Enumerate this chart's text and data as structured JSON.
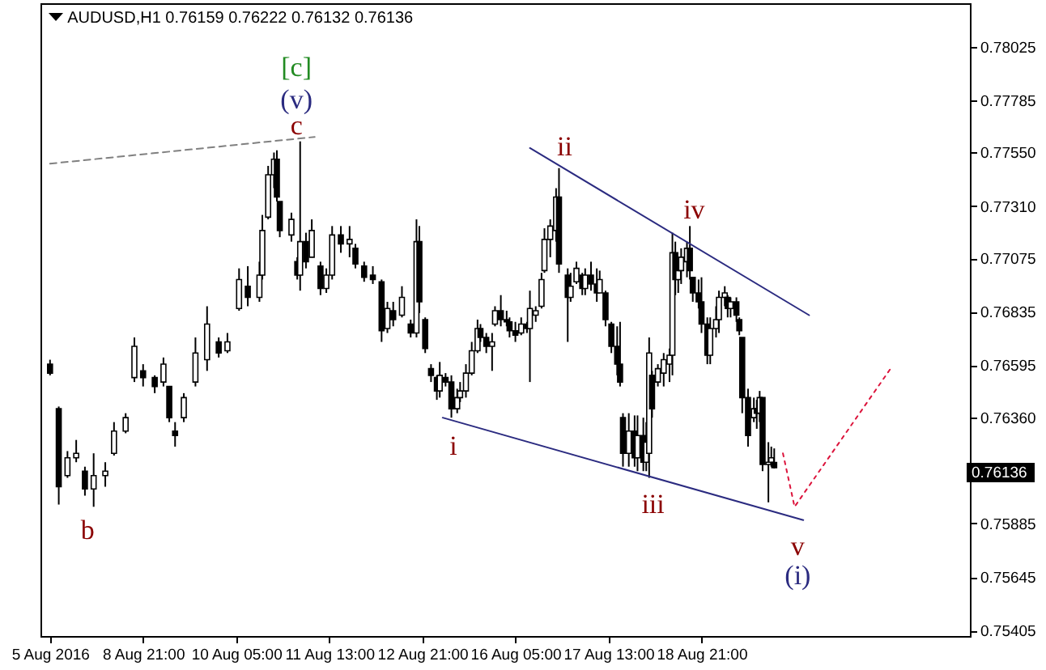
{
  "chart_data": {
    "type": "candlestick",
    "title": "AUDUSD,H1 0.76159 0.76222 0.76132 0.76136",
    "categories": [
      "5 Aug 2016",
      null,
      null,
      null,
      null,
      null,
      null,
      null,
      null,
      null,
      null,
      null,
      null,
      null,
      null,
      null,
      null,
      null,
      null,
      null,
      null,
      null,
      null,
      null,
      null,
      null,
      null,
      null,
      null,
      null,
      null,
      null,
      "8 Aug 21:00",
      null,
      null,
      null,
      null,
      null,
      null,
      null,
      null,
      null,
      null,
      null,
      null,
      null,
      null,
      null,
      null,
      null,
      null,
      null,
      null,
      null,
      null,
      null,
      null,
      null,
      null,
      null,
      null,
      null,
      null,
      null,
      "10 Aug 05:00",
      null,
      null,
      null,
      null,
      null,
      null,
      null,
      null,
      null,
      null,
      null,
      null,
      null,
      null,
      null,
      null,
      null,
      null,
      null,
      null,
      null,
      null,
      null,
      null,
      null,
      null,
      null,
      null,
      null,
      null,
      null,
      "11 Aug 13:00",
      null,
      null,
      null,
      null,
      null,
      null,
      null,
      null,
      null,
      null,
      null,
      null,
      null,
      null,
      null,
      null,
      null,
      null,
      null,
      null,
      null,
      null,
      null,
      null,
      null,
      null,
      null,
      null,
      null,
      null,
      null,
      "12 Aug 21:00",
      null,
      null,
      null,
      null,
      null,
      null,
      null,
      null,
      null,
      null,
      null,
      null,
      null,
      null,
      null,
      null,
      null,
      null,
      null,
      null,
      null,
      null,
      null,
      null,
      null,
      null,
      null,
      null,
      null,
      null,
      null,
      "16 Aug 05:00",
      null,
      null,
      null,
      null,
      null,
      null,
      null,
      null,
      null,
      null,
      null,
      null,
      null,
      null,
      null,
      null,
      null,
      null,
      null,
      null,
      null,
      null,
      null,
      null,
      null,
      null,
      null,
      null,
      null,
      null,
      null,
      "17 Aug 13:00",
      null,
      null,
      null,
      null,
      null,
      null,
      null,
      null,
      null,
      null,
      null,
      null,
      null,
      null,
      null,
      null,
      null,
      null,
      null,
      null,
      null,
      null,
      null,
      null,
      null,
      null,
      null,
      null,
      null,
      null,
      null,
      "18 Aug 21:00",
      null,
      null,
      null,
      null,
      null,
      null,
      null,
      null,
      null,
      null,
      null,
      null,
      null,
      null,
      null,
      null,
      null,
      null,
      null,
      null,
      null,
      null,
      null,
      null,
      null,
      null,
      null,
      null,
      null,
      null,
      null,
      null,
      null,
      null,
      null,
      null,
      null,
      null,
      null,
      null,
      null,
      null,
      null,
      null,
      null,
      null,
      null,
      null,
      null,
      null,
      null,
      null,
      null,
      null,
      null,
      null,
      null,
      null,
      null,
      null,
      null,
      null,
      null,
      null,
      null,
      null,
      null,
      null,
      null,
      null,
      null,
      null,
      null,
      null,
      null,
      null,
      null,
      null,
      null,
      null,
      null,
      null,
      null,
      null,
      null,
      null,
      null,
      null,
      null
    ],
    "ohlc": [
      [
        0.766,
        0.7662,
        0.7655,
        0.7656
      ],
      null,
      null,
      [
        0.764,
        0.7641,
        0.7597,
        0.7605
      ],
      null,
      null,
      [
        0.761,
        0.7621,
        0.7609,
        0.7618
      ],
      null,
      null,
      [
        0.7618,
        0.7626,
        0.7616,
        0.762
      ],
      null,
      null,
      [
        0.7612,
        0.7614,
        0.7601,
        0.7604
      ],
      null,
      null,
      [
        0.7604,
        0.762,
        0.7596,
        0.761
      ],
      null,
      null,
      null,
      [
        0.761,
        0.7616,
        0.7605,
        0.7612
      ],
      null,
      null,
      [
        0.762,
        0.7634,
        0.7619,
        0.763
      ],
      null,
      null,
      null,
      [
        0.763,
        0.7638,
        0.7629,
        0.7636
      ],
      null,
      null,
      [
        0.7654,
        0.7672,
        0.7652,
        0.7668
      ],
      null,
      null,
      [
        0.7657,
        0.766,
        0.765,
        0.7654
      ],
      null,
      null,
      null,
      [
        0.7654,
        0.7655,
        0.7647,
        0.765
      ],
      null,
      null,
      [
        0.7652,
        0.7663,
        0.765,
        0.766
      ],
      null,
      [
        0.765,
        0.765,
        0.7634,
        0.7636
      ],
      null,
      [
        0.763,
        0.7634,
        0.7623,
        0.7628
      ],
      null,
      null,
      [
        0.7636,
        0.7647,
        0.7634,
        0.7645
      ],
      null,
      null,
      null,
      [
        0.7652,
        0.7672,
        0.765,
        0.7665
      ],
      null,
      null,
      null,
      [
        0.7662,
        0.7686,
        0.7657,
        0.7678
      ],
      null,
      null,
      null,
      [
        0.767,
        0.7672,
        0.7663,
        0.7665
      ],
      null,
      null,
      [
        0.7666,
        0.7674,
        0.7665,
        0.767
      ],
      null,
      null,
      null,
      [
        0.7685,
        0.7703,
        0.7684,
        0.7698
      ],
      null,
      null,
      [
        0.7695,
        0.7704,
        0.7686,
        0.769
      ],
      null,
      null,
      null,
      [
        0.769,
        0.7706,
        0.7688,
        0.77
      ],
      [
        0.77,
        0.7727,
        0.7698,
        0.772
      ],
      null,
      [
        0.7726,
        0.7749,
        0.7725,
        0.7745
      ],
      null,
      [
        0.7745,
        0.7755,
        0.7739,
        0.7752
      ],
      [
        0.7752,
        0.7756,
        0.7733,
        0.7735
      ],
      [
        0.7733,
        0.7733,
        0.7717,
        0.772
      ],
      null,
      null,
      null,
      [
        0.7718,
        0.7728,
        0.7715,
        0.7725
      ],
      null,
      [
        0.7706,
        0.7708,
        0.7698,
        0.77
      ],
      [
        0.77,
        0.776,
        0.7693,
        0.7715
      ],
      null,
      [
        0.7715,
        0.7719,
        0.7703,
        0.7706
      ],
      null,
      [
        0.7708,
        0.7725,
        0.7708,
        0.772
      ],
      null,
      null,
      [
        0.7704,
        0.7706,
        0.7691,
        0.7694
      ],
      null,
      [
        0.7694,
        0.7703,
        0.7692,
        0.77
      ],
      null,
      [
        0.77,
        0.7722,
        0.7698,
        0.7718
      ],
      null,
      null,
      [
        0.7718,
        0.7722,
        0.771,
        0.7714
      ],
      null,
      null,
      [
        0.7714,
        0.7722,
        0.7708,
        0.7716
      ],
      null,
      [
        0.7712,
        0.7714,
        0.7703,
        0.7705
      ],
      null,
      null,
      [
        0.7704,
        0.7706,
        0.7697,
        0.7699
      ],
      null,
      null,
      [
        0.77,
        0.7704,
        0.7696,
        0.7698
      ],
      null,
      null,
      [
        0.7697,
        0.7698,
        0.767,
        0.7675
      ],
      null,
      [
        0.7676,
        0.7688,
        0.7674,
        0.7685
      ],
      null,
      [
        0.7684,
        0.7688,
        0.7677,
        0.768
      ],
      null,
      null,
      [
        0.7682,
        0.7695,
        0.7681,
        0.769
      ],
      null,
      null,
      [
        0.7678,
        0.768,
        0.7672,
        0.7674
      ],
      null,
      [
        0.7674,
        0.7725,
        0.7672,
        0.7715
      ],
      [
        0.7715,
        0.7722,
        0.7683,
        0.7688
      ],
      null,
      [
        0.768,
        0.7681,
        0.7665,
        0.7667
      ],
      null,
      [
        0.7658,
        0.766,
        0.7652,
        0.7655
      ],
      null,
      [
        0.7654,
        0.7655,
        0.7644,
        0.7648
      ],
      [
        0.7648,
        0.7661,
        0.7645,
        0.7655
      ],
      null,
      [
        0.7654,
        0.7656,
        0.765,
        0.7652
      ],
      null,
      [
        0.7652,
        0.7655,
        0.7636,
        0.764
      ],
      null,
      [
        0.764,
        0.7649,
        0.7638,
        0.7645
      ],
      [
        0.7645,
        0.7652,
        0.7643,
        0.7648
      ],
      null,
      [
        0.7648,
        0.766,
        0.7645,
        0.7656
      ],
      null,
      [
        0.7656,
        0.767,
        0.7655,
        0.7666
      ],
      null,
      [
        0.7666,
        0.768,
        0.7665,
        0.7676
      ],
      [
        0.7676,
        0.7678,
        0.767,
        0.7672
      ],
      null,
      [
        0.7672,
        0.7674,
        0.7665,
        0.7668
      ],
      null,
      [
        0.7668,
        0.7674,
        0.7657,
        0.767
      ],
      [
        0.7678,
        0.7686,
        0.7677,
        0.7684
      ],
      null,
      [
        0.7684,
        0.7691,
        0.7677,
        0.768
      ],
      null,
      [
        0.768,
        0.7684,
        0.7677,
        0.7679
      ],
      [
        0.7679,
        0.7681,
        0.7672,
        0.7675
      ],
      null,
      [
        0.7675,
        0.7679,
        0.767,
        0.7673
      ],
      null,
      [
        0.7674,
        0.7681,
        0.7673,
        0.7678
      ],
      null,
      [
        0.7678,
        0.7679,
        0.7674,
        0.7676
      ],
      [
        0.7676,
        0.7693,
        0.7652,
        0.7685
      ],
      null,
      [
        0.7682,
        0.7686,
        0.7679,
        0.7684
      ],
      null,
      [
        0.7686,
        0.7701,
        0.7685,
        0.7698
      ],
      [
        0.7702,
        0.7721,
        0.7701,
        0.7716
      ],
      null,
      [
        0.7716,
        0.7725,
        0.7708,
        0.7722
      ],
      null,
      [
        0.772,
        0.7739,
        0.7715,
        0.7735
      ],
      [
        0.7735,
        0.7748,
        0.7701,
        0.7705
      ],
      null,
      null,
      [
        0.77,
        0.7703,
        0.767,
        0.769
      ],
      [
        0.769,
        0.7701,
        0.7688,
        0.7695
      ],
      null,
      [
        0.7697,
        0.7706,
        0.7696,
        0.7703
      ],
      null,
      [
        0.77,
        0.7701,
        0.7691,
        0.7694
      ],
      [
        0.7694,
        0.7703,
        0.7691,
        0.77
      ],
      null,
      [
        0.77,
        0.7706,
        0.7693,
        0.7696
      ],
      null,
      [
        0.7696,
        0.7703,
        0.7688,
        0.7692
      ],
      [
        0.7692,
        0.7702,
        0.7692,
        0.7698
      ],
      null,
      [
        0.7692,
        0.7693,
        0.7677,
        0.768
      ],
      null,
      [
        0.7678,
        0.7679,
        0.7665,
        0.7668
      ],
      null,
      [
        0.7668,
        0.7677,
        0.7655,
        0.766
      ],
      [
        0.766,
        0.7679,
        0.765,
        0.7652
      ],
      [
        0.7636,
        0.7638,
        0.7614,
        0.762
      ],
      null,
      [
        0.762,
        0.7638,
        0.7614,
        0.763
      ],
      null,
      [
        0.763,
        0.7637,
        0.7614,
        0.7618
      ],
      [
        0.7618,
        0.7637,
        0.7612,
        0.7628
      ],
      null,
      [
        0.7628,
        0.7636,
        0.7612,
        0.7616
      ],
      [
        0.7616,
        0.7634,
        0.7612,
        0.7625
      ],
      [
        0.762,
        0.7672,
        0.7609,
        0.7665
      ],
      [
        0.7655,
        0.7657,
        0.7636,
        0.764
      ],
      null,
      [
        0.7652,
        0.766,
        0.765,
        0.7658
      ],
      null,
      [
        0.7656,
        0.7665,
        0.765,
        0.7662
      ],
      null,
      [
        0.766,
        0.7667,
        0.7652,
        0.7664
      ],
      [
        0.7664,
        0.7719,
        0.7655,
        0.771
      ],
      [
        0.771,
        0.7715,
        0.7691,
        0.7698
      ],
      [
        0.7698,
        0.7706,
        0.7692,
        0.7702
      ],
      [
        0.7702,
        0.7712,
        0.7696,
        0.7708
      ],
      null,
      [
        0.7706,
        0.7715,
        0.7699,
        0.7712
      ],
      [
        0.7712,
        0.7722,
        0.7698,
        0.7702
      ],
      [
        0.7699,
        0.7699,
        0.7688,
        0.7692
      ],
      null,
      [
        0.7692,
        0.7698,
        0.7685,
        0.7688
      ],
      [
        0.7688,
        0.7699,
        0.7674,
        0.7678
      ],
      null,
      [
        0.7678,
        0.7681,
        0.766,
        0.7664
      ],
      [
        0.7664,
        0.7681,
        0.766,
        0.7676
      ],
      null,
      [
        0.7676,
        0.7686,
        0.7672,
        0.768
      ],
      [
        0.768,
        0.7693,
        0.7674,
        0.769
      ],
      null,
      [
        0.769,
        0.7695,
        0.7686,
        0.7692
      ],
      [
        0.769,
        0.7691,
        0.7681,
        0.7685
      ],
      [
        0.7685,
        0.769,
        0.7681,
        0.7688
      ],
      null,
      [
        0.7688,
        0.769,
        0.7679,
        0.7682
      ],
      [
        0.768,
        0.7681,
        0.7673,
        0.7675
      ],
      [
        0.7672,
        0.7672,
        0.7638,
        0.7645
      ],
      null,
      [
        0.7645,
        0.7649,
        0.7623,
        0.7628
      ],
      null,
      [
        0.7636,
        0.7645,
        0.7634,
        0.764
      ],
      [
        0.764,
        0.7644,
        0.7631,
        0.7638
      ],
      [
        0.7638,
        0.7648,
        0.7634,
        0.7645
      ],
      [
        0.7645,
        0.7645,
        0.7612,
        0.7615
      ],
      null,
      [
        0.7615,
        0.7625,
        0.7598,
        0.7616
      ],
      [
        0.7616,
        0.7623,
        0.7614,
        0.7618
      ],
      [
        0.76159,
        0.76222,
        0.76132,
        0.76136
      ],
      null,
      null,
      null,
      null,
      null,
      null,
      null,
      null,
      null,
      null,
      null,
      null,
      null,
      null,
      null,
      null,
      null,
      null,
      null,
      null,
      null,
      null,
      null,
      null,
      null,
      null,
      null,
      null,
      null,
      null,
      null,
      null,
      null,
      null,
      null,
      null,
      null,
      null,
      null,
      null,
      null,
      null,
      null,
      null,
      null,
      null,
      null,
      null,
      null,
      null,
      null,
      null,
      null,
      null,
      null,
      null,
      null,
      null,
      null,
      null,
      null,
      null,
      null,
      null
    ],
    "series": [
      {
        "type": "line",
        "color": "#808080",
        "line_style": "dashed",
        "values": [
          0.775,
          null,
          null,
          null,
          null,
          null,
          null,
          null,
          null,
          null,
          null,
          null,
          null,
          null,
          null,
          null,
          null,
          null,
          null,
          null,
          null,
          null,
          null,
          null,
          null,
          null,
          null,
          null,
          null,
          null,
          null,
          null,
          null,
          null,
          null,
          null,
          null,
          null,
          null,
          null,
          null,
          null,
          null,
          null,
          null,
          null,
          null,
          null,
          null,
          null,
          null,
          null,
          null,
          null,
          null,
          null,
          null,
          null,
          null,
          null,
          null,
          null,
          null,
          null,
          null,
          null,
          null,
          null,
          null,
          null,
          null,
          null,
          null,
          null,
          null,
          null,
          null,
          null,
          null,
          null,
          null,
          null,
          null,
          null,
          null,
          null,
          null,
          null,
          null,
          null,
          null,
          0.7762,
          null,
          null,
          null,
          null,
          null,
          null,
          null,
          null,
          null,
          null,
          null,
          null,
          null,
          null,
          null,
          null,
          null,
          null,
          null,
          null,
          null,
          null,
          null,
          null,
          null,
          null,
          null,
          null,
          null,
          null,
          null,
          null,
          null,
          null,
          null,
          null,
          null,
          null,
          null,
          null,
          null,
          null,
          null,
          null,
          null,
          null,
          null,
          null,
          null,
          null,
          null,
          null,
          null,
          null,
          null,
          null,
          null,
          null,
          null,
          null,
          null,
          null,
          null,
          null,
          null,
          null,
          null,
          null,
          null,
          null,
          null,
          null,
          null,
          null,
          null,
          null,
          null,
          null,
          null,
          null,
          null,
          null,
          null,
          null,
          null,
          null,
          null,
          null,
          null,
          null,
          null,
          null,
          null,
          null,
          null,
          null,
          null,
          null,
          null,
          null,
          null,
          null,
          null,
          null,
          null,
          null,
          null,
          null,
          null,
          null,
          null,
          null,
          null,
          null,
          null,
          null,
          null,
          null,
          null,
          null,
          null,
          null,
          null,
          null,
          null,
          null,
          null,
          null,
          null,
          null,
          null,
          null,
          null,
          null,
          null,
          null,
          null,
          null,
          null,
          null,
          null,
          null,
          null,
          null,
          null,
          null,
          null,
          null,
          null,
          null,
          null,
          null,
          null,
          null,
          null,
          null,
          null,
          null,
          null,
          null,
          null,
          null,
          null,
          null,
          null,
          null,
          null,
          null,
          null,
          null,
          null,
          null,
          null,
          null,
          null,
          null,
          null,
          null,
          null,
          null,
          null,
          null,
          null,
          null,
          null,
          null,
          null,
          null,
          null,
          null,
          null,
          null,
          null,
          null,
          null,
          null,
          null,
          null,
          null,
          null,
          null,
          null,
          null,
          null,
          null,
          null,
          null,
          null,
          null,
          null,
          null,
          null,
          null,
          null,
          null,
          null,
          null,
          null,
          null,
          null,
          null,
          null
        ]
      },
      {
        "type": "line",
        "color": "#2b2b80",
        "line_style": "solid",
        "values": [
          null,
          null,
          null,
          null,
          null,
          null,
          null,
          null,
          null,
          null,
          null,
          null,
          null,
          null,
          null,
          null,
          null,
          null,
          null,
          null,
          null,
          null,
          null,
          null,
          null,
          null,
          null,
          null,
          null,
          null,
          null,
          null,
          null,
          null,
          null,
          null,
          null,
          null,
          null,
          null,
          null,
          null,
          null,
          null,
          null,
          null,
          null,
          null,
          null,
          null,
          null,
          null,
          null,
          null,
          null,
          null,
          null,
          null,
          null,
          null,
          null,
          null,
          null,
          null,
          null,
          null,
          null,
          null,
          null,
          null,
          null,
          null,
          null,
          null,
          null,
          null,
          null,
          null,
          null,
          null,
          null,
          null,
          null,
          null,
          null,
          null,
          null,
          null,
          null,
          null,
          null,
          null,
          null,
          null,
          null,
          null,
          null,
          null,
          null,
          null,
          null,
          null,
          null,
          null,
          null,
          null,
          null,
          null,
          null,
          null,
          null,
          null,
          null,
          null,
          null,
          null,
          null,
          null,
          null,
          null,
          null,
          null,
          null,
          null,
          null,
          null,
          null,
          null,
          null,
          null,
          null,
          null,
          null,
          null,
          null,
          null,
          null,
          null,
          null,
          null,
          null,
          null,
          null,
          null,
          null,
          null,
          null,
          null,
          null,
          null,
          null,
          null,
          null,
          null,
          null,
          null,
          null,
          null,
          null,
          null,
          null,
          null,
          null,
          null,
          null,
          0.7757,
          null,
          null,
          null,
          null,
          null,
          null,
          null,
          null,
          null,
          null,
          null,
          null,
          null,
          null,
          null,
          null,
          null,
          null,
          null,
          null,
          null,
          null,
          null,
          null,
          null,
          null,
          null,
          null,
          null,
          null,
          null,
          null,
          null,
          null,
          null,
          null,
          null,
          null,
          null,
          null,
          null,
          null,
          null,
          null,
          null,
          null,
          null,
          null,
          null,
          null,
          null,
          null,
          null,
          null,
          null,
          null,
          null,
          null,
          null,
          null,
          null,
          null,
          null,
          null,
          null,
          null,
          null,
          null,
          null,
          null,
          null,
          null,
          null,
          null,
          null,
          null,
          null,
          null,
          null,
          null,
          null,
          null,
          null,
          null,
          null,
          null,
          null,
          null,
          null,
          null,
          null,
          null,
          null,
          null,
          null,
          0.7682,
          null,
          null,
          null,
          null,
          null,
          null,
          null,
          null,
          null,
          null,
          null,
          null,
          null,
          null,
          null,
          null,
          null,
          null,
          null,
          null,
          null,
          null,
          null,
          null,
          null,
          null,
          null,
          null,
          null,
          null,
          null,
          null,
          null,
          null,
          null,
          null,
          null,
          null,
          null,
          null,
          null,
          null,
          null,
          null,
          null,
          null,
          null,
          null,
          null,
          null,
          null,
          null
        ]
      },
      {
        "type": "line",
        "color": "#2b2b80",
        "line_style": "solid",
        "values": [
          null,
          null,
          null,
          null,
          null,
          null,
          null,
          null,
          null,
          null,
          null,
          null,
          null,
          null,
          null,
          null,
          null,
          null,
          null,
          null,
          null,
          null,
          null,
          null,
          null,
          null,
          null,
          null,
          null,
          null,
          null,
          null,
          null,
          null,
          null,
          null,
          null,
          null,
          null,
          null,
          null,
          null,
          null,
          null,
          null,
          null,
          null,
          null,
          null,
          null,
          null,
          null,
          null,
          null,
          null,
          null,
          null,
          null,
          null,
          null,
          null,
          null,
          null,
          null,
          null,
          null,
          null,
          null,
          null,
          null,
          null,
          null,
          null,
          null,
          null,
          null,
          null,
          null,
          null,
          null,
          null,
          null,
          null,
          null,
          null,
          null,
          null,
          null,
          null,
          null,
          null,
          null,
          null,
          null,
          null,
          null,
          null,
          null,
          null,
          null,
          null,
          null,
          null,
          null,
          null,
          null,
          null,
          null,
          null,
          null,
          null,
          null,
          null,
          null,
          null,
          null,
          null,
          null,
          null,
          null,
          null,
          null,
          null,
          null,
          null,
          null,
          null,
          null,
          null,
          null,
          null,
          null,
          null,
          null,
          null,
          0.7636,
          null,
          null,
          null,
          null,
          null,
          null,
          null,
          null,
          null,
          null,
          null,
          null,
          null,
          null,
          null,
          null,
          null,
          null,
          null,
          null,
          null,
          null,
          null,
          null,
          null,
          null,
          null,
          null,
          null,
          null,
          null,
          null,
          null,
          null,
          null,
          null,
          null,
          null,
          null,
          null,
          null,
          null,
          null,
          null,
          null,
          null,
          null,
          null,
          null,
          null,
          null,
          null,
          null,
          null,
          null,
          null,
          null,
          null,
          null,
          null,
          null,
          null,
          null,
          null,
          null,
          null,
          null,
          null,
          null,
          null,
          null,
          null,
          null,
          null,
          null,
          null,
          null,
          null,
          null,
          null,
          null,
          null,
          null,
          null,
          null,
          null,
          null,
          null,
          null,
          null,
          null,
          null,
          null,
          null,
          null,
          null,
          null,
          null,
          null,
          null,
          null,
          null,
          null,
          null,
          null,
          null,
          null,
          null,
          null,
          null,
          null,
          null,
          null,
          null,
          null,
          null,
          null,
          null,
          null,
          null,
          null,
          null,
          null,
          0.759,
          null,
          null,
          null,
          null,
          null,
          null,
          null,
          null,
          null,
          null,
          null,
          null,
          null,
          null,
          null,
          null,
          null,
          null,
          null,
          null,
          null,
          null,
          null,
          null,
          null,
          null,
          null,
          null,
          null,
          null,
          null,
          null,
          null,
          null,
          null,
          null,
          null,
          null,
          null,
          null,
          null,
          null,
          null,
          null,
          null,
          null,
          null,
          null,
          null,
          null,
          null,
          null,
          null,
          null
        ]
      },
      {
        "type": "line",
        "color": "#dc143c",
        "line_style": "dotted",
        "values": [
          null,
          null,
          null,
          null,
          null,
          null,
          null,
          null,
          null,
          null,
          null,
          null,
          null,
          null,
          null,
          null,
          null,
          null,
          null,
          null,
          null,
          null,
          null,
          null,
          null,
          null,
          null,
          null,
          null,
          null,
          null,
          null,
          null,
          null,
          null,
          null,
          null,
          null,
          null,
          null,
          null,
          null,
          null,
          null,
          null,
          null,
          null,
          null,
          null,
          null,
          null,
          null,
          null,
          null,
          null,
          null,
          null,
          null,
          null,
          null,
          null,
          null,
          null,
          null,
          null,
          null,
          null,
          null,
          null,
          null,
          null,
          null,
          null,
          null,
          null,
          null,
          null,
          null,
          null,
          null,
          null,
          null,
          null,
          null,
          null,
          null,
          null,
          null,
          null,
          null,
          null,
          null,
          null,
          null,
          null,
          null,
          null,
          null,
          null,
          null,
          null,
          null,
          null,
          null,
          null,
          null,
          null,
          null,
          null,
          null,
          null,
          null,
          null,
          null,
          null,
          null,
          null,
          null,
          null,
          null,
          null,
          null,
          null,
          null,
          null,
          null,
          null,
          null,
          null,
          null,
          null,
          null,
          null,
          null,
          null,
          null,
          null,
          null,
          null,
          null,
          null,
          null,
          null,
          null,
          null,
          null,
          null,
          null,
          null,
          null,
          null,
          null,
          null,
          null,
          null,
          null,
          null,
          null,
          null,
          null,
          null,
          null,
          null,
          null,
          null,
          null,
          null,
          null,
          null,
          null,
          null,
          null,
          null,
          null,
          null,
          null,
          null,
          null,
          null,
          null,
          null,
          null,
          null,
          null,
          null,
          null,
          null,
          null,
          null,
          null,
          null,
          null,
          null,
          null,
          null,
          null,
          null,
          null,
          null,
          null,
          null,
          null,
          null,
          null,
          null,
          null,
          null,
          null,
          null,
          null,
          null,
          null,
          null,
          null,
          null,
          null,
          null,
          null,
          null,
          null,
          null,
          null,
          null,
          null,
          null,
          null,
          null,
          null,
          null,
          null,
          null,
          null,
          null,
          null,
          null,
          null,
          null,
          null,
          null,
          null,
          null,
          null,
          null,
          null,
          null,
          null,
          null,
          null,
          null,
          null,
          null,
          null,
          0.762,
          null,
          null,
          null,
          0.7596,
          null,
          null,
          null,
          null,
          null,
          null,
          null,
          null,
          null,
          null,
          null,
          null,
          null,
          null,
          null,
          null,
          null,
          null,
          null,
          null,
          null,
          null,
          null,
          null,
          null,
          null,
          null,
          null,
          null,
          null,
          null,
          null,
          0.7658,
          null,
          null,
          null,
          null,
          null,
          null,
          null,
          null,
          null,
          null,
          null,
          null,
          null,
          null,
          null,
          null,
          null,
          null,
          null,
          null,
          null,
          null,
          null,
          null
        ]
      }
    ],
    "ylim": [
      0.7538,
      0.7822
    ],
    "yticks": [
      0.78025,
      0.77785,
      {
        "value": 0.7755,
        "label": "0.77550"
      },
      {
        "value": 0.7731,
        "label": "0.77310"
      },
      0.77075,
      0.76835,
      0.76595,
      {
        "value": 0.7636,
        "label": "0.76360"
      },
      0.75885,
      0.75645,
      0.75405
    ],
    "annotations": [
      "[c]",
      "(v)",
      "c",
      "b",
      "i",
      "ii",
      "iii",
      "iv",
      "v",
      "(i)",
      "0.76136"
    ]
  }
}
